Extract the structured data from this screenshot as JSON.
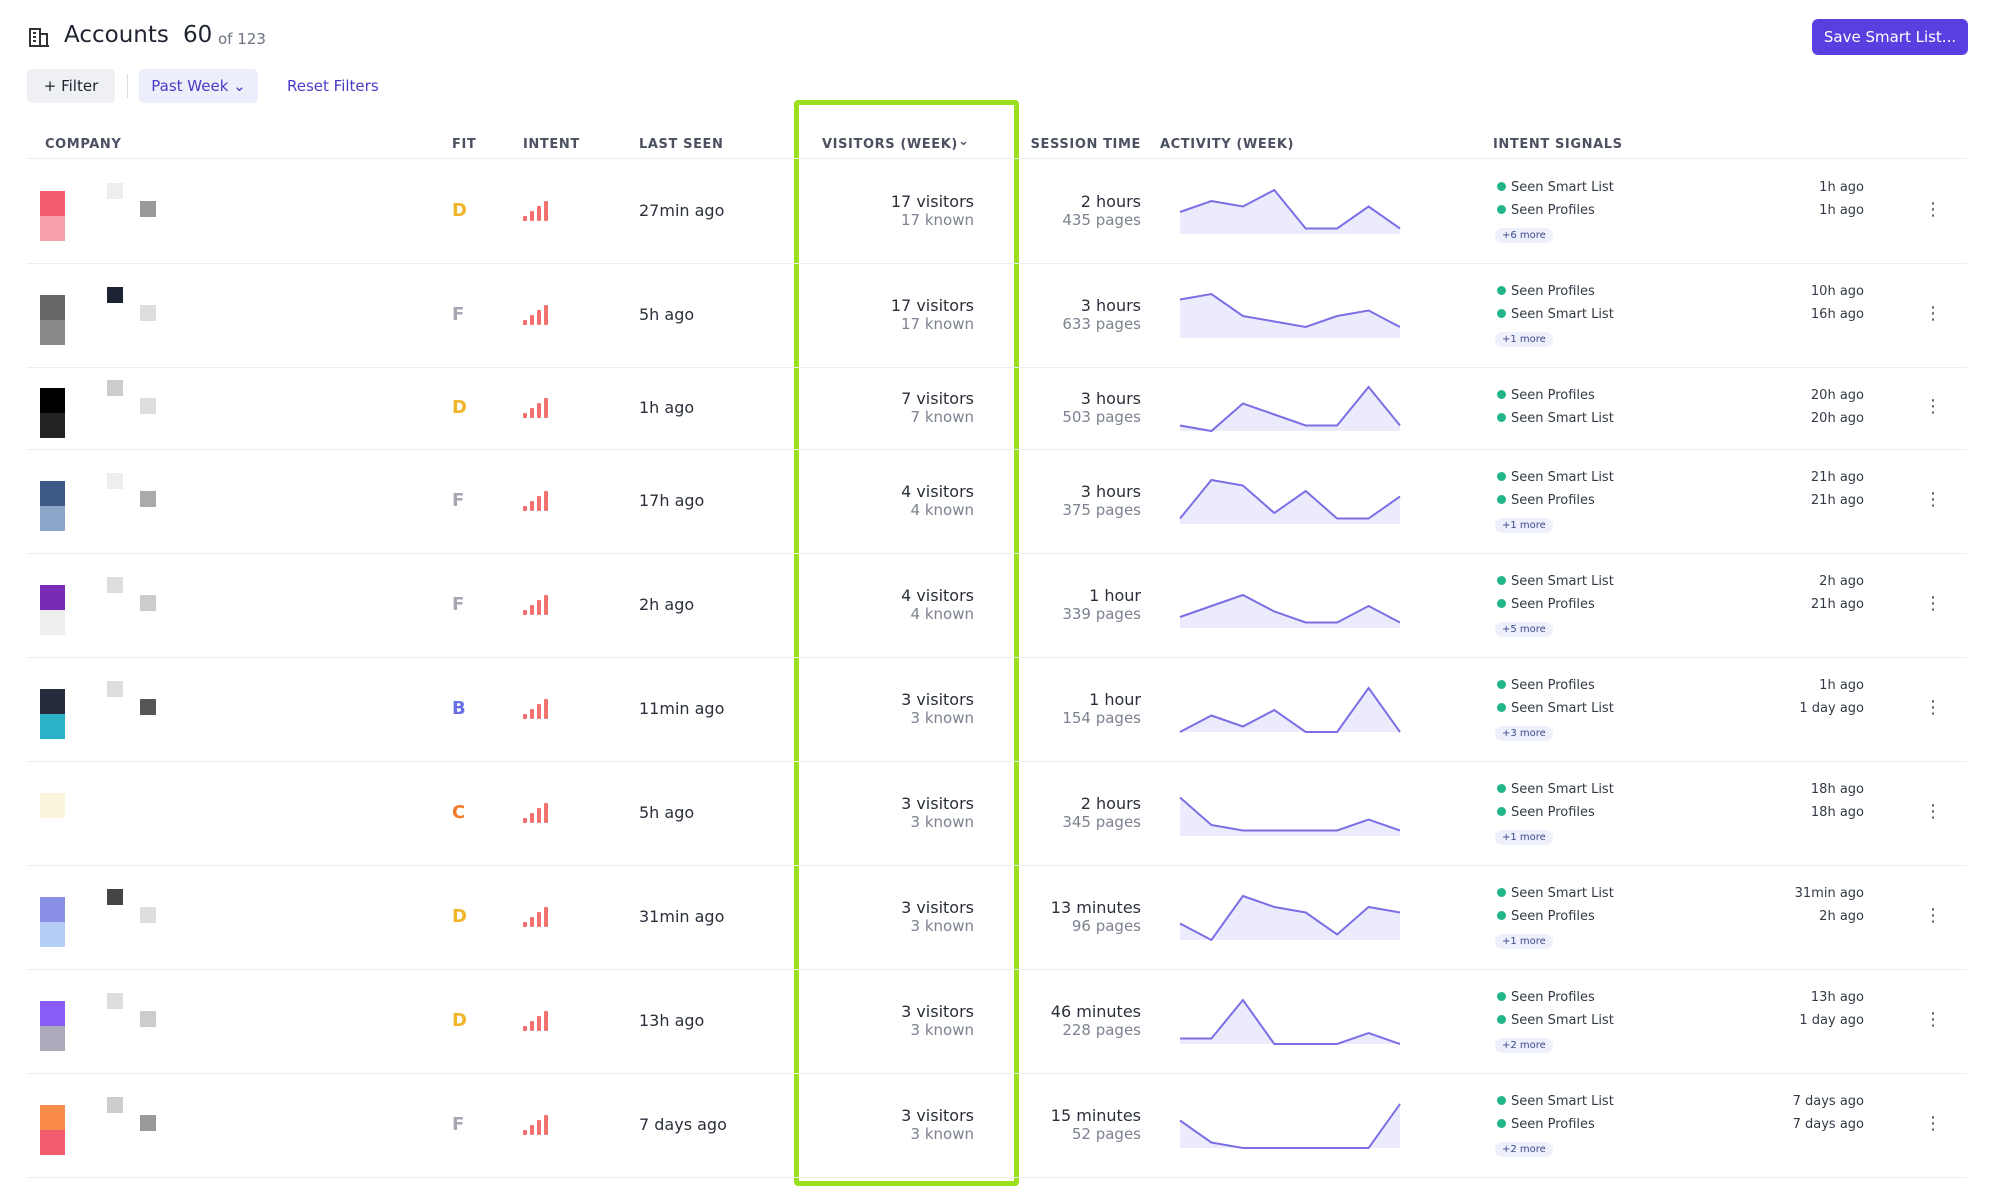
{
  "header": {
    "title": "Accounts",
    "count": "60",
    "total": "of 123",
    "save_button": "Save Smart List..."
  },
  "filters": {
    "filter": "Filter",
    "period": "Past Week",
    "reset": "Reset Filters"
  },
  "table": {
    "columns": [
      "COMPANY",
      "FIT",
      "INTENT",
      "LAST SEEN",
      "VISITORS (WEEK)",
      "SESSION TIME",
      "ACTIVITY (WEEK)",
      "INTENT SIGNALS"
    ],
    "rows": [
      {
        "fit": "D",
        "last_seen": "27min ago",
        "visitors": "17 visitors",
        "known": "17 known",
        "session_time": "2 hours",
        "pages": "435 pages",
        "activity": [
          4,
          6,
          5,
          8,
          1,
          1,
          5,
          1
        ],
        "signals": [
          {
            "label": "Seen Smart List",
            "time": "1h ago"
          },
          {
            "label": "Seen Profiles",
            "time": "1h ago"
          }
        ],
        "more": "+6 more"
      },
      {
        "fit": "F",
        "last_seen": "5h ago",
        "visitors": "17 visitors",
        "known": "17 known",
        "session_time": "3 hours",
        "pages": "633 pages",
        "activity": [
          7,
          8,
          4,
          3,
          2,
          4,
          5,
          2
        ],
        "signals": [
          {
            "label": "Seen Profiles",
            "time": "10h ago"
          },
          {
            "label": "Seen Smart List",
            "time": "16h ago"
          }
        ],
        "more": "+1 more"
      },
      {
        "fit": "D",
        "last_seen": "1h ago",
        "visitors": "7 visitors",
        "known": "7 known",
        "session_time": "3 hours",
        "pages": "503 pages",
        "activity": [
          1,
          0,
          5,
          3,
          1,
          1,
          8,
          1
        ],
        "signals": [
          {
            "label": "Seen Profiles",
            "time": "20h ago"
          },
          {
            "label": "Seen Smart List",
            "time": "20h ago"
          }
        ]
      },
      {
        "fit": "F",
        "last_seen": "17h ago",
        "visitors": "4 visitors",
        "known": "4 known",
        "session_time": "3 hours",
        "pages": "375 pages",
        "activity": [
          1,
          8,
          7,
          2,
          6,
          1,
          1,
          5
        ],
        "signals": [
          {
            "label": "Seen Smart List",
            "time": "21h ago"
          },
          {
            "label": "Seen Profiles",
            "time": "21h ago"
          }
        ],
        "more": "+1 more"
      },
      {
        "fit": "F",
        "last_seen": "2h ago",
        "visitors": "4 visitors",
        "known": "4 known",
        "session_time": "1 hour",
        "pages": "339 pages",
        "activity": [
          2,
          4,
          6,
          3,
          1,
          1,
          4,
          1
        ],
        "signals": [
          {
            "label": "Seen Smart List",
            "time": "2h ago"
          },
          {
            "label": "Seen Profiles",
            "time": "21h ago"
          }
        ],
        "more": "+5 more"
      },
      {
        "fit": "B",
        "last_seen": "11min ago",
        "visitors": "3 visitors",
        "known": "3 known",
        "session_time": "1 hour",
        "pages": "154 pages",
        "activity": [
          0,
          3,
          1,
          4,
          0,
          0,
          8,
          0
        ],
        "signals": [
          {
            "label": "Seen Profiles",
            "time": "1h ago"
          },
          {
            "label": "Seen Smart List",
            "time": "1 day ago"
          }
        ],
        "more": "+3 more"
      },
      {
        "fit": "C",
        "last_seen": "5h ago",
        "visitors": "3 visitors",
        "known": "3 known",
        "session_time": "2 hours",
        "pages": "345 pages",
        "activity": [
          7,
          2,
          1,
          1,
          1,
          1,
          3,
          1
        ],
        "signals": [
          {
            "label": "Seen Smart List",
            "time": "18h ago"
          },
          {
            "label": "Seen Profiles",
            "time": "18h ago"
          }
        ],
        "more": "+1 more"
      },
      {
        "fit": "D",
        "last_seen": "31min ago",
        "visitors": "3 visitors",
        "known": "3 known",
        "session_time": "13 minutes",
        "pages": "96 pages",
        "activity": [
          3,
          0,
          8,
          6,
          5,
          1,
          6,
          5
        ],
        "signals": [
          {
            "label": "Seen Smart List",
            "time": "31min ago"
          },
          {
            "label": "Seen Profiles",
            "time": "2h ago"
          }
        ],
        "more": "+1 more"
      },
      {
        "fit": "D",
        "last_seen": "13h ago",
        "visitors": "3 visitors",
        "known": "3 known",
        "session_time": "46 minutes",
        "pages": "228 pages",
        "activity": [
          1,
          1,
          8,
          0,
          0,
          0,
          2,
          0
        ],
        "signals": [
          {
            "label": "Seen Profiles",
            "time": "13h ago"
          },
          {
            "label": "Seen Smart List",
            "time": "1 day ago"
          }
        ],
        "more": "+2 more"
      },
      {
        "fit": "F",
        "last_seen": "7 days ago",
        "visitors": "3 visitors",
        "known": "3 known",
        "session_time": "15 minutes",
        "pages": "52 pages",
        "activity": [
          5,
          1,
          0,
          0,
          0,
          0,
          0,
          8
        ],
        "signals": [
          {
            "label": "Seen Smart List",
            "time": "7 days ago"
          },
          {
            "label": "Seen Profiles",
            "time": "7 days ago"
          }
        ],
        "more": "+2 more"
      }
    ]
  }
}
